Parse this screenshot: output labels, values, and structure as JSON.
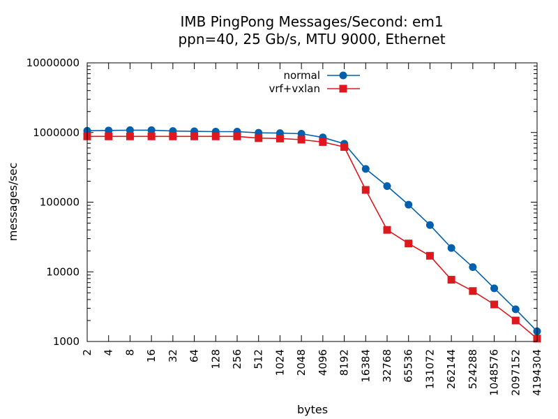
{
  "chart_data": {
    "type": "line",
    "title": [
      "IMB PingPong Messages/Second: em1",
      "ppn=40, 25 Gb/s, MTU 9000, Ethernet"
    ],
    "xlabel": "bytes",
    "ylabel": "messages/sec",
    "x_scale": "log2",
    "y_scale": "log10",
    "xlim": [
      2,
      4194304
    ],
    "ylim": [
      1000,
      10000000
    ],
    "x_ticks": [
      2,
      4,
      8,
      16,
      32,
      64,
      128,
      256,
      512,
      1024,
      2048,
      4096,
      8192,
      16384,
      32768,
      65536,
      131072,
      262144,
      524288,
      1048576,
      2097152,
      4194304
    ],
    "y_ticks": [
      1000,
      10000,
      100000,
      1000000,
      10000000
    ],
    "legend_position": "top-center",
    "x": [
      2,
      4,
      8,
      16,
      32,
      64,
      128,
      256,
      512,
      1024,
      2048,
      4096,
      8192,
      16384,
      32768,
      65536,
      131072,
      262144,
      524288,
      1048576,
      2097152,
      4194304
    ],
    "series": [
      {
        "name": "normal",
        "color": "#0060ad",
        "marker": "circle",
        "values": [
          1060000,
          1070000,
          1080000,
          1080000,
          1050000,
          1040000,
          1030000,
          1030000,
          990000,
          980000,
          960000,
          850000,
          690000,
          300000,
          170000,
          92000,
          47000,
          22000,
          11700,
          5800,
          2900,
          1400
        ]
      },
      {
        "name": "vrf+vxlan",
        "color": "#dd181f",
        "marker": "square",
        "values": [
          880000,
          880000,
          880000,
          880000,
          880000,
          880000,
          880000,
          880000,
          830000,
          820000,
          790000,
          730000,
          620000,
          150000,
          40000,
          25500,
          17000,
          7700,
          5300,
          3400,
          2000,
          1100
        ]
      }
    ]
  }
}
